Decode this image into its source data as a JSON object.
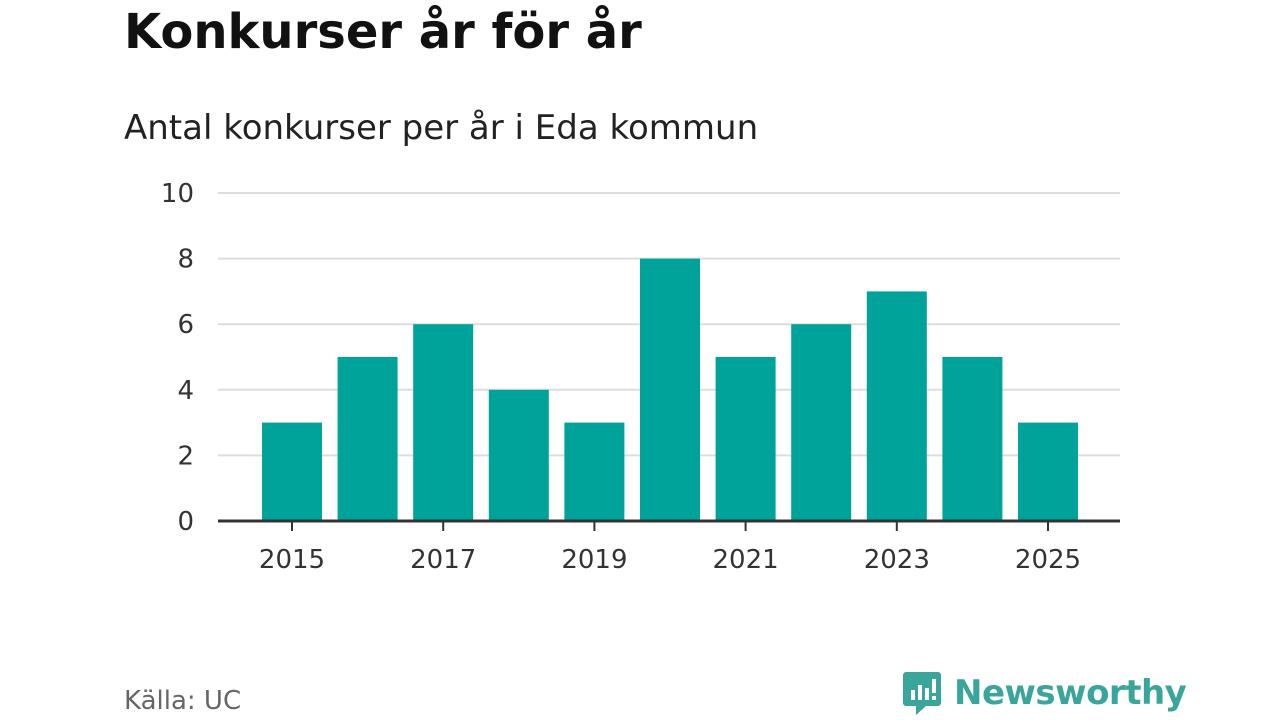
{
  "header": {
    "title": "Konkurser år för år",
    "subtitle": "Antal konkurser per år i Eda kommun"
  },
  "footer": {
    "source": "Källa: UC",
    "brand": "Newsworthy",
    "brand_icon": "newsworthy-logo-icon"
  },
  "colors": {
    "bar": "#00a39a",
    "grid": "#dddddd",
    "axis": "#333333",
    "brand": "#3aa59a"
  },
  "chart_data": {
    "type": "bar",
    "title": "Konkurser år för år",
    "subtitle": "Antal konkurser per år i Eda kommun",
    "xlabel": "",
    "ylabel": "",
    "categories": [
      2015,
      2016,
      2017,
      2018,
      2019,
      2020,
      2021,
      2022,
      2023,
      2024,
      2025
    ],
    "values": [
      3,
      5,
      6,
      4,
      3,
      8,
      5,
      6,
      7,
      5,
      3
    ],
    "x_ticks": [
      2015,
      2017,
      2019,
      2021,
      2023,
      2025
    ],
    "y_ticks": [
      0,
      2,
      4,
      6,
      8,
      10
    ],
    "ylim": [
      0,
      10
    ],
    "grid": true,
    "legend": "none"
  }
}
